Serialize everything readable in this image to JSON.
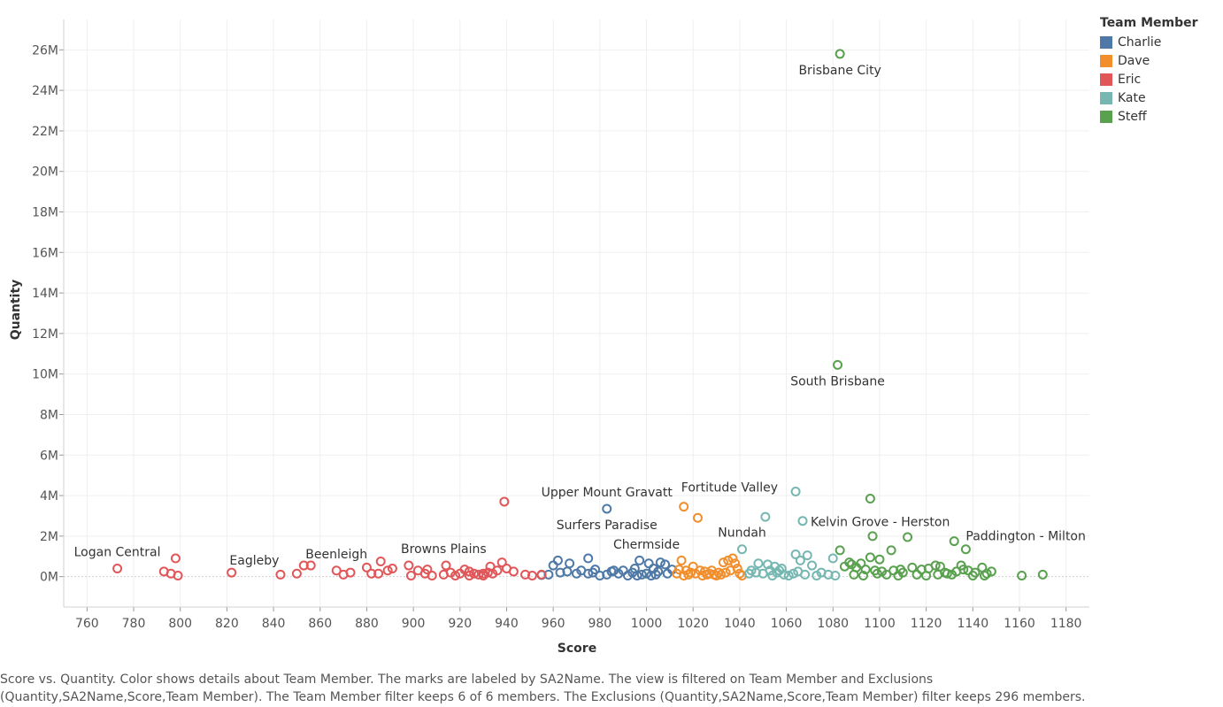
{
  "chart_data": {
    "type": "scatter",
    "xlabel": "Score",
    "ylabel": "Quantity",
    "xlim": [
      750,
      1190
    ],
    "ylim": [
      -1500000,
      27500000
    ],
    "x_ticks": [
      760,
      780,
      800,
      820,
      840,
      860,
      880,
      900,
      920,
      940,
      960,
      980,
      1000,
      1020,
      1040,
      1060,
      1080,
      1100,
      1120,
      1140,
      1160,
      1180
    ],
    "y_ticks": [
      0,
      2000000,
      4000000,
      6000000,
      8000000,
      10000000,
      12000000,
      14000000,
      16000000,
      18000000,
      20000000,
      22000000,
      24000000,
      26000000
    ],
    "y_tick_labels": [
      "0M",
      "2M",
      "4M",
      "6M",
      "8M",
      "10M",
      "12M",
      "14M",
      "16M",
      "18M",
      "20M",
      "22M",
      "24M",
      "26M"
    ],
    "grid": true,
    "legend_position": "top-right",
    "legend_title": "Team Member",
    "series": [
      {
        "name": "Charlie",
        "color": "#4e79a7",
        "points": [
          [
            983,
            3350000
          ],
          [
            975,
            900000
          ],
          [
            962,
            800000
          ],
          [
            967,
            650000
          ],
          [
            960,
            550000
          ],
          [
            997,
            800000
          ],
          [
            1001,
            650000
          ],
          [
            1006,
            700000
          ],
          [
            1008,
            600000
          ],
          [
            1003,
            400000
          ],
          [
            995,
            400000
          ],
          [
            990,
            300000
          ],
          [
            985,
            250000
          ],
          [
            978,
            350000
          ],
          [
            972,
            300000
          ],
          [
            970,
            150000
          ],
          [
            963,
            200000
          ],
          [
            958,
            100000
          ],
          [
            955,
            80000
          ],
          [
            975,
            150000
          ],
          [
            980,
            50000
          ],
          [
            983,
            100000
          ],
          [
            988,
            150000
          ],
          [
            992,
            50000
          ],
          [
            994,
            200000
          ],
          [
            998,
            100000
          ],
          [
            1000,
            150000
          ],
          [
            1002,
            50000
          ],
          [
            1005,
            250000
          ],
          [
            1009,
            150000
          ],
          [
            1011,
            350000
          ],
          [
            1004,
            100000
          ],
          [
            996,
            50000
          ],
          [
            986,
            300000
          ],
          [
            977,
            200000
          ],
          [
            966,
            250000
          ]
        ]
      },
      {
        "name": "Dave",
        "color": "#f28e2b",
        "points": [
          [
            1016,
            3450000
          ],
          [
            1022,
            2900000
          ],
          [
            1015,
            800000
          ],
          [
            1020,
            500000
          ],
          [
            1014,
            350000
          ],
          [
            1017,
            300000
          ],
          [
            1019,
            200000
          ],
          [
            1021,
            150000
          ],
          [
            1018,
            100000
          ],
          [
            1023,
            300000
          ],
          [
            1025,
            250000
          ],
          [
            1027,
            150000
          ],
          [
            1029,
            100000
          ],
          [
            1031,
            200000
          ],
          [
            1033,
            700000
          ],
          [
            1035,
            800000
          ],
          [
            1037,
            900000
          ],
          [
            1038,
            650000
          ],
          [
            1039,
            400000
          ],
          [
            1036,
            300000
          ],
          [
            1034,
            200000
          ],
          [
            1032,
            100000
          ],
          [
            1030,
            50000
          ],
          [
            1028,
            300000
          ],
          [
            1026,
            100000
          ],
          [
            1024,
            50000
          ],
          [
            1016,
            50000
          ],
          [
            1013,
            150000
          ],
          [
            1040,
            150000
          ],
          [
            1041,
            50000
          ]
        ]
      },
      {
        "name": "Eric",
        "color": "#e15759",
        "points": [
          [
            939,
            3700000
          ],
          [
            773,
            400000
          ],
          [
            793,
            250000
          ],
          [
            796,
            150000
          ],
          [
            798,
            900000
          ],
          [
            799,
            50000
          ],
          [
            822,
            200000
          ],
          [
            843,
            100000
          ],
          [
            850,
            150000
          ],
          [
            853,
            550000
          ],
          [
            856,
            550000
          ],
          [
            867,
            300000
          ],
          [
            870,
            100000
          ],
          [
            873,
            200000
          ],
          [
            880,
            450000
          ],
          [
            882,
            150000
          ],
          [
            885,
            150000
          ],
          [
            886,
            750000
          ],
          [
            889,
            300000
          ],
          [
            891,
            400000
          ],
          [
            898,
            550000
          ],
          [
            899,
            50000
          ],
          [
            902,
            300000
          ],
          [
            905,
            150000
          ],
          [
            906,
            350000
          ],
          [
            908,
            50000
          ],
          [
            913,
            100000
          ],
          [
            914,
            550000
          ],
          [
            916,
            200000
          ],
          [
            918,
            50000
          ],
          [
            920,
            150000
          ],
          [
            922,
            350000
          ],
          [
            924,
            250000
          ],
          [
            926,
            150000
          ],
          [
            928,
            100000
          ],
          [
            930,
            50000
          ],
          [
            932,
            200000
          ],
          [
            933,
            500000
          ],
          [
            934,
            150000
          ],
          [
            936,
            300000
          ],
          [
            938,
            700000
          ],
          [
            940,
            400000
          ],
          [
            943,
            250000
          ],
          [
            948,
            100000
          ],
          [
            951,
            50000
          ],
          [
            955,
            100000
          ],
          [
            930,
            150000
          ],
          [
            924,
            50000
          ]
        ]
      },
      {
        "name": "Kate",
        "color": "#76b7b2",
        "points": [
          [
            1064,
            4200000
          ],
          [
            1051,
            2950000
          ],
          [
            1067,
            2750000
          ],
          [
            1041,
            1350000
          ],
          [
            1064,
            1100000
          ],
          [
            1069,
            1050000
          ],
          [
            1080,
            900000
          ],
          [
            1066,
            800000
          ],
          [
            1071,
            550000
          ],
          [
            1048,
            650000
          ],
          [
            1052,
            600000
          ],
          [
            1055,
            500000
          ],
          [
            1058,
            400000
          ],
          [
            1045,
            300000
          ],
          [
            1047,
            200000
          ],
          [
            1050,
            150000
          ],
          [
            1053,
            300000
          ],
          [
            1056,
            200000
          ],
          [
            1059,
            100000
          ],
          [
            1061,
            50000
          ],
          [
            1063,
            150000
          ],
          [
            1065,
            250000
          ],
          [
            1068,
            100000
          ],
          [
            1073,
            50000
          ],
          [
            1075,
            200000
          ],
          [
            1078,
            100000
          ],
          [
            1081,
            50000
          ],
          [
            1057,
            300000
          ],
          [
            1054,
            50000
          ],
          [
            1044,
            150000
          ]
        ]
      },
      {
        "name": "Steff",
        "color": "#59a14f",
        "points": [
          [
            1083,
            25800000
          ],
          [
            1082,
            10450000
          ],
          [
            1096,
            3850000
          ],
          [
            1097,
            2000000
          ],
          [
            1112,
            1950000
          ],
          [
            1132,
            1750000
          ],
          [
            1137,
            1350000
          ],
          [
            1083,
            1300000
          ],
          [
            1105,
            1300000
          ],
          [
            1096,
            950000
          ],
          [
            1100,
            850000
          ],
          [
            1087,
            700000
          ],
          [
            1092,
            650000
          ],
          [
            1088,
            600000
          ],
          [
            1085,
            500000
          ],
          [
            1090,
            450000
          ],
          [
            1094,
            350000
          ],
          [
            1098,
            300000
          ],
          [
            1101,
            250000
          ],
          [
            1106,
            300000
          ],
          [
            1109,
            350000
          ],
          [
            1110,
            200000
          ],
          [
            1114,
            450000
          ],
          [
            1118,
            350000
          ],
          [
            1121,
            400000
          ],
          [
            1124,
            550000
          ],
          [
            1126,
            500000
          ],
          [
            1128,
            200000
          ],
          [
            1131,
            100000
          ],
          [
            1133,
            250000
          ],
          [
            1135,
            550000
          ],
          [
            1136,
            350000
          ],
          [
            1138,
            300000
          ],
          [
            1141,
            200000
          ],
          [
            1144,
            450000
          ],
          [
            1146,
            150000
          ],
          [
            1148,
            250000
          ],
          [
            1161,
            50000
          ],
          [
            1170,
            100000
          ],
          [
            1089,
            100000
          ],
          [
            1093,
            50000
          ],
          [
            1099,
            150000
          ],
          [
            1103,
            100000
          ],
          [
            1108,
            50000
          ],
          [
            1116,
            100000
          ],
          [
            1120,
            50000
          ],
          [
            1125,
            100000
          ],
          [
            1129,
            150000
          ],
          [
            1140,
            50000
          ],
          [
            1145,
            50000
          ]
        ]
      }
    ],
    "annotations": [
      {
        "text": "Brisbane City",
        "x": 1083,
        "y": 25800000,
        "anchor": "below"
      },
      {
        "text": "South Brisbane",
        "x": 1082,
        "y": 10450000,
        "anchor": "below"
      },
      {
        "text": "Upper Mount Gravatt",
        "x": 983,
        "y": 3350000,
        "anchor": "above"
      },
      {
        "text": "Surfers Paradise",
        "x": 983,
        "y": 3350000,
        "anchor": "below"
      },
      {
        "text": "Fortitude Valley",
        "x": 1064,
        "y": 4200000,
        "anchor": "left"
      },
      {
        "text": "Kelvin Grove - Herston",
        "x": 1067,
        "y": 2750000,
        "anchor": "right"
      },
      {
        "text": "Chermside",
        "x": 1000,
        "y": 1600000,
        "anchor": "text"
      },
      {
        "text": "Nundah",
        "x": 1041,
        "y": 1350000,
        "anchor": "above"
      },
      {
        "text": "Paddington - Milton",
        "x": 1137,
        "y": 1350000,
        "anchor": "above-right"
      },
      {
        "text": "Logan Central",
        "x": 773,
        "y": 400000,
        "anchor": "above"
      },
      {
        "text": "Eagleby",
        "x": 850,
        "y": 150000,
        "anchor": "above-left"
      },
      {
        "text": "Beenleigh",
        "x": 867,
        "y": 300000,
        "anchor": "above"
      },
      {
        "text": "Browns Plains",
        "x": 913,
        "y": 550000,
        "anchor": "above"
      }
    ]
  },
  "caption_lines": [
    "Score vs. Quantity.  Color shows details about Team Member.  The marks are labeled by SA2Name. The view is filtered on Team Member and Exclusions",
    "(Quantity,SA2Name,Score,Team Member). The Team Member filter keeps 6 of 6 members. The Exclusions (Quantity,SA2Name,Score,Team Member) filter keeps 296 members."
  ]
}
